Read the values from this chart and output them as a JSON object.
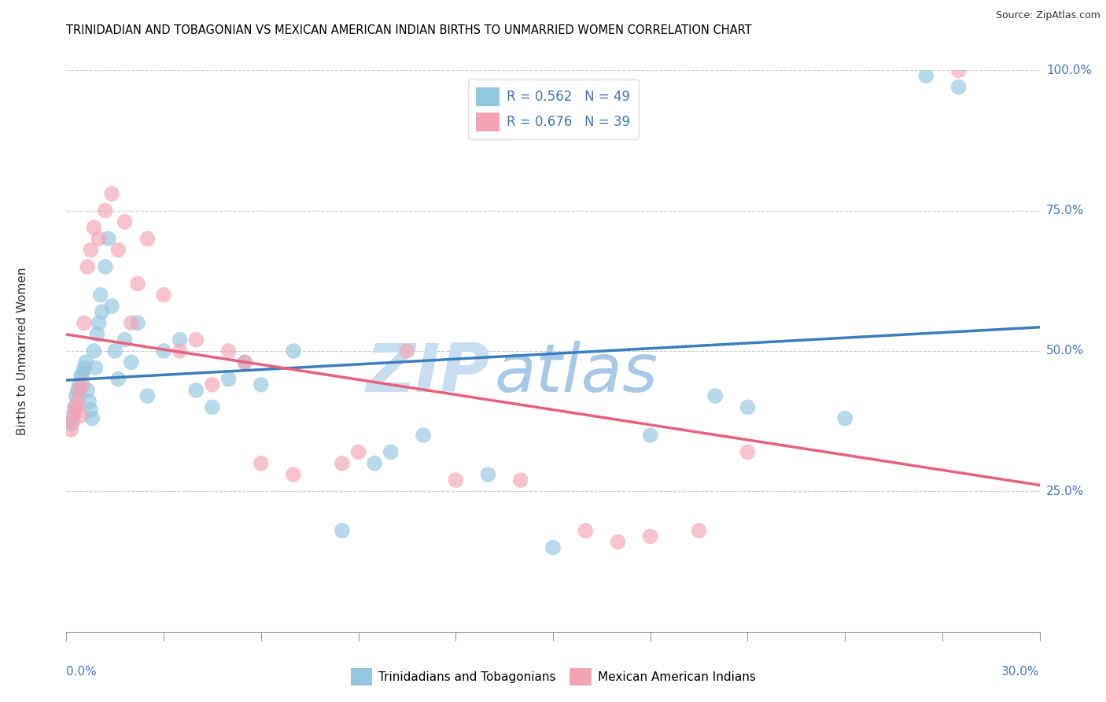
{
  "title": "TRINIDADIAN AND TOBAGONIAN VS MEXICAN AMERICAN INDIAN BIRTHS TO UNMARRIED WOMEN CORRELATION CHART",
  "source": "Source: ZipAtlas.com",
  "ylabel": "Births to Unmarried Women",
  "xlim": [
    0.0,
    30.0
  ],
  "ylim": [
    0.0,
    100.0
  ],
  "yticks": [
    25.0,
    50.0,
    75.0,
    100.0
  ],
  "legend_r_blue": "R = 0.562",
  "legend_n_blue": "N = 49",
  "legend_r_pink": "R = 0.676",
  "legend_n_pink": "N = 39",
  "blue_color": "#92c5de",
  "pink_color": "#f4a3b5",
  "blue_line_color": "#3a7ebf",
  "pink_line_color": "#e8607a",
  "watermark_zip_color": "#c8ddf0",
  "watermark_atlas_color": "#a8c8e8",
  "legend_series1": "Trinidadians and Tobagonians",
  "legend_series2": "Mexican American Indians",
  "blue_x": [
    0.15,
    0.2,
    0.25,
    0.3,
    0.35,
    0.4,
    0.45,
    0.5,
    0.55,
    0.6,
    0.65,
    0.7,
    0.75,
    0.8,
    0.85,
    0.9,
    0.95,
    1.0,
    1.05,
    1.1,
    1.2,
    1.3,
    1.4,
    1.5,
    1.6,
    1.8,
    2.0,
    2.2,
    2.5,
    3.0,
    3.5,
    4.0,
    4.5,
    5.0,
    5.5,
    6.0,
    7.0,
    8.5,
    9.5,
    10.0,
    11.0,
    13.0,
    15.0,
    18.0,
    20.0,
    21.0,
    24.0,
    26.5,
    27.5
  ],
  "blue_y": [
    37.0,
    38.5,
    40.0,
    42.0,
    43.0,
    44.0,
    45.5,
    46.0,
    47.0,
    48.0,
    43.0,
    41.0,
    39.5,
    38.0,
    50.0,
    47.0,
    53.0,
    55.0,
    60.0,
    57.0,
    65.0,
    70.0,
    58.0,
    50.0,
    45.0,
    52.0,
    48.0,
    55.0,
    42.0,
    50.0,
    52.0,
    43.0,
    40.0,
    45.0,
    48.0,
    44.0,
    50.0,
    18.0,
    30.0,
    32.0,
    35.0,
    28.0,
    15.0,
    35.0,
    42.0,
    40.0,
    38.0,
    99.0,
    97.0
  ],
  "pink_x": [
    0.15,
    0.2,
    0.25,
    0.3,
    0.35,
    0.4,
    0.45,
    0.5,
    0.55,
    0.65,
    0.75,
    0.85,
    1.0,
    1.2,
    1.4,
    1.6,
    1.8,
    2.0,
    2.2,
    2.5,
    3.0,
    3.5,
    4.0,
    4.5,
    5.0,
    5.5,
    6.0,
    7.0,
    8.5,
    9.0,
    10.5,
    12.0,
    14.0,
    16.0,
    17.0,
    18.0,
    19.5,
    21.0,
    27.5
  ],
  "pink_y": [
    36.0,
    37.5,
    39.0,
    40.0,
    41.0,
    43.0,
    38.5,
    44.0,
    55.0,
    65.0,
    68.0,
    72.0,
    70.0,
    75.0,
    78.0,
    68.0,
    73.0,
    55.0,
    62.0,
    70.0,
    60.0,
    50.0,
    52.0,
    44.0,
    50.0,
    48.0,
    30.0,
    28.0,
    30.0,
    32.0,
    50.0,
    27.0,
    27.0,
    18.0,
    16.0,
    17.0,
    18.0,
    32.0,
    100.0
  ]
}
